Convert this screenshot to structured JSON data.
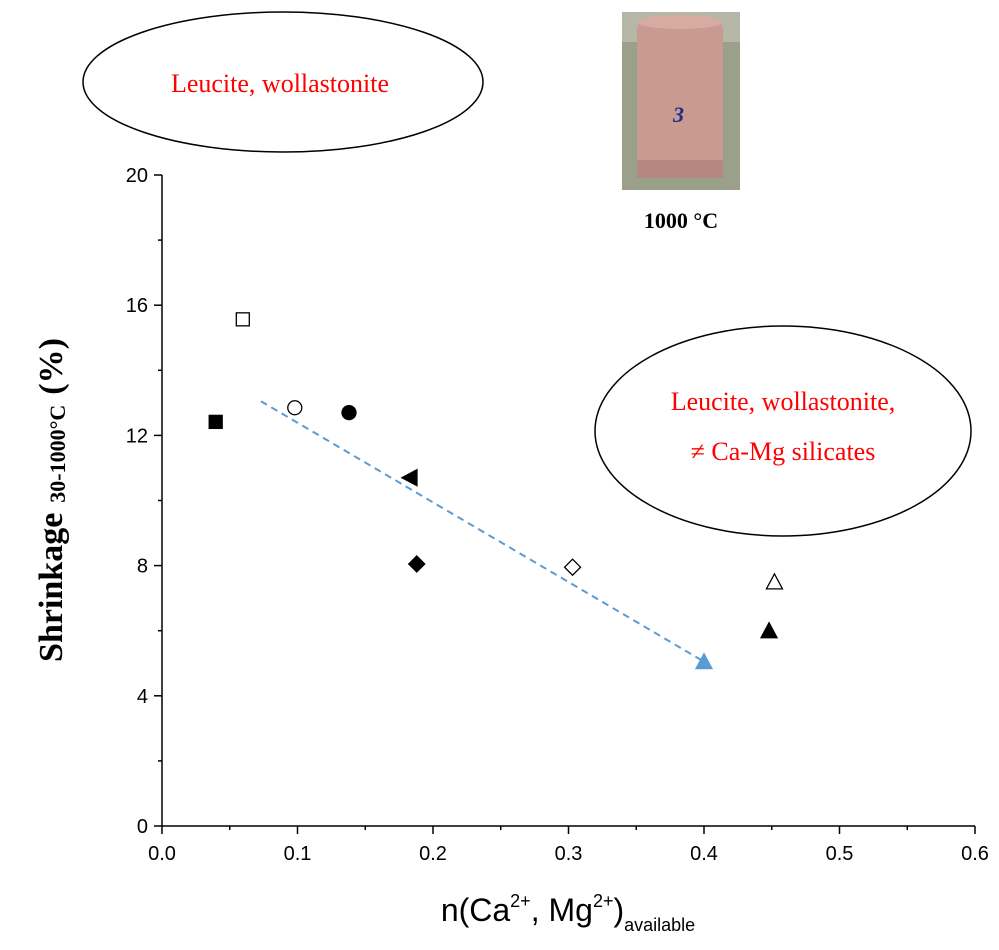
{
  "chart_data": {
    "type": "scatter",
    "title": "",
    "xlabel": {
      "base": "n(Ca",
      "sup1": "2+",
      "mid": ", Mg",
      "sup2": "2+",
      "close": ")",
      "sub": "available"
    },
    "ylabel": {
      "main": "Shrinkage",
      "sub": "30-1000°C",
      "unit": "(%)"
    },
    "xlim": [
      0.0,
      0.6
    ],
    "ylim": [
      0,
      20
    ],
    "x_ticks": [
      0.0,
      0.1,
      0.2,
      0.3,
      0.4,
      0.5,
      0.6
    ],
    "x_tick_labels": [
      "0.0",
      "0.1",
      "0.2",
      "0.3",
      "0.4",
      "0.5",
      "0.6"
    ],
    "y_ticks": [
      0,
      4,
      8,
      12,
      16,
      20
    ],
    "y_tick_labels": [
      "0",
      "4",
      "8",
      "12",
      "16",
      "20"
    ],
    "grid": false,
    "points": [
      {
        "x": 0.04,
        "y": 12.4,
        "marker": "square",
        "filled": true,
        "color": "#000000"
      },
      {
        "x": 0.06,
        "y": 15.55,
        "marker": "square",
        "filled": false,
        "color": "#000000"
      },
      {
        "x": 0.098,
        "y": 12.85,
        "marker": "circle",
        "filled": false,
        "color": "#000000"
      },
      {
        "x": 0.138,
        "y": 12.7,
        "marker": "circle",
        "filled": true,
        "color": "#000000"
      },
      {
        "x": 0.183,
        "y": 10.7,
        "marker": "triangle-left",
        "filled": true,
        "color": "#000000"
      },
      {
        "x": 0.188,
        "y": 8.05,
        "marker": "diamond",
        "filled": true,
        "color": "#000000"
      },
      {
        "x": 0.303,
        "y": 7.95,
        "marker": "diamond",
        "filled": false,
        "color": "#000000"
      },
      {
        "x": 0.4,
        "y": 5.05,
        "marker": "triangle-up",
        "filled": true,
        "color": "#5b9bd5"
      },
      {
        "x": 0.448,
        "y": 6.0,
        "marker": "triangle-up",
        "filled": true,
        "color": "#000000"
      },
      {
        "x": 0.452,
        "y": 7.5,
        "marker": "triangle-up",
        "filled": false,
        "color": "#000000"
      }
    ],
    "trendline": {
      "x": [
        0.073,
        0.4
      ],
      "y": [
        13.05,
        5.05
      ],
      "style": "dashed",
      "color": "#5b9bd5"
    },
    "annotations": [
      {
        "lines": [
          "Leucite, wollastonite"
        ],
        "shape": "ellipse"
      },
      {
        "lines": [
          "Leucite, wollastonite,",
          "≠ Ca-Mg silicates"
        ],
        "shape": "ellipse"
      }
    ],
    "photo": {
      "label": "1000 °C",
      "sample_mark": "3",
      "colors": {
        "body": "#c89a90",
        "background": "#9aa08a"
      }
    }
  }
}
